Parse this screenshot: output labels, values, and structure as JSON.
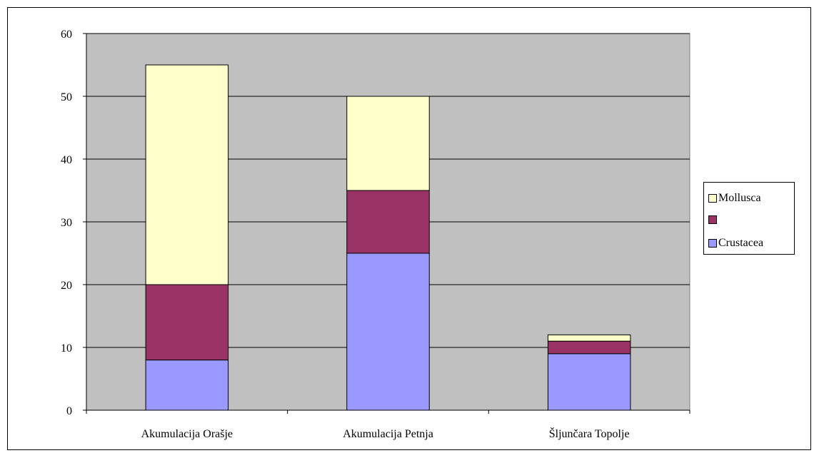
{
  "chart_data": {
    "type": "bar",
    "stacked": true,
    "categories": [
      "Akumulacija Orašje",
      "Akumulacija Petnja",
      "Šljunčara Topolje"
    ],
    "series": [
      {
        "name": "Crustacea",
        "values": [
          8,
          25,
          9
        ],
        "color": "#9999ff"
      },
      {
        "name": "",
        "values": [
          12,
          10,
          2
        ],
        "color": "#993366"
      },
      {
        "name": "Mollusca",
        "values": [
          35,
          15,
          1
        ],
        "color": "#ffffcc"
      }
    ],
    "ylim": [
      0,
      60
    ],
    "yticks": [
      0,
      10,
      20,
      30,
      40,
      50,
      60
    ],
    "title": "",
    "xlabel": "",
    "ylabel": "",
    "grid": true,
    "plot_background": "#c0c0c0",
    "legend_position": "right"
  },
  "legend": {
    "items": [
      {
        "label": "Mollusca",
        "color": "#ffffcc"
      },
      {
        "label": "",
        "color": "#993366"
      },
      {
        "label": "Crustacea",
        "color": "#9999ff"
      }
    ]
  }
}
